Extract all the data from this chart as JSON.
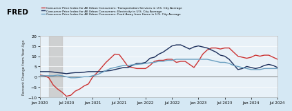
{
  "background_color": "#d5e8f4",
  "plot_background": "#e8f1f8",
  "ylabel": "Percent Change from Year Ago",
  "ylim": [
    -10,
    20
  ],
  "yticks": [
    -10,
    -5,
    0,
    5,
    10,
    15,
    20
  ],
  "shading_x0": 2,
  "shading_x1": 5,
  "legend": [
    {
      "label": "Consumer Price Index for All Urban Consumers: Transportation Services in U.S. City Average",
      "color": "#cc3333",
      "lw": 1.0
    },
    {
      "label": "Consumer Price Index for All Urban Consumers: Electricity in U.S. City Average",
      "color": "#1a2d5a",
      "lw": 1.0
    },
    {
      "label": "Consumer Price Index for All Urban Consumers: Food Away from Home in U.S. City Average",
      "color": "#6a9fc0",
      "lw": 1.0
    }
  ],
  "transportation": [
    0.8,
    0.5,
    -0.5,
    -4.0,
    -6.0,
    -7.5,
    -9.5,
    -9.0,
    -7.0,
    -6.0,
    -4.5,
    -3.5,
    0.0,
    2.0,
    4.5,
    7.0,
    9.0,
    11.0,
    10.8,
    8.0,
    5.0,
    4.5,
    4.0,
    4.0,
    4.0,
    5.5,
    7.5,
    8.0,
    8.0,
    8.5,
    8.5,
    7.0,
    7.5,
    7.5,
    6.0,
    4.5,
    7.5,
    11.0,
    13.0,
    14.0,
    14.0,
    13.5,
    14.0,
    14.0,
    12.0,
    10.0,
    9.5,
    9.0,
    9.5,
    10.5,
    10.0,
    10.5,
    10.5,
    9.5,
    8.5
  ],
  "electricity": [
    2.5,
    2.5,
    2.5,
    2.3,
    2.0,
    1.8,
    1.5,
    1.8,
    2.0,
    2.0,
    2.2,
    2.5,
    2.5,
    2.5,
    2.5,
    2.8,
    3.0,
    3.5,
    4.0,
    4.5,
    4.5,
    5.5,
    6.5,
    6.5,
    7.0,
    9.0,
    9.5,
    11.0,
    12.0,
    13.5,
    15.0,
    15.5,
    15.5,
    14.5,
    13.5,
    14.5,
    15.0,
    14.5,
    14.0,
    13.0,
    12.0,
    10.5,
    10.0,
    8.5,
    6.0,
    3.5,
    4.0,
    5.0,
    4.5,
    4.0,
    4.5,
    5.5,
    6.0,
    5.5,
    4.5
  ],
  "food_away": [
    0.5,
    0.5,
    0.5,
    0.5,
    0.8,
    0.5,
    0.0,
    -0.5,
    -0.5,
    -0.3,
    0.0,
    0.0,
    0.5,
    1.0,
    2.0,
    3.0,
    4.0,
    4.5,
    5.0,
    5.5,
    5.5,
    5.8,
    6.0,
    6.2,
    6.5,
    6.8,
    7.0,
    7.5,
    7.5,
    8.0,
    8.0,
    8.5,
    8.5,
    8.5,
    8.5,
    8.5,
    8.5,
    8.5,
    8.5,
    8.0,
    7.5,
    7.0,
    7.0,
    6.5,
    5.5,
    5.0,
    4.5,
    4.0,
    3.5,
    3.5,
    3.5,
    4.0,
    4.0,
    4.0,
    4.0
  ],
  "xtick_labels": [
    "Jan 2020",
    "Jul 2020",
    "Jan 2021",
    "Jul 2021",
    "Jan 2022",
    "Jul 2022",
    "Jan 2023",
    "Jul 2023",
    "Jan 2024",
    "Jul 2024"
  ],
  "xtick_positions": [
    0,
    6,
    12,
    18,
    24,
    30,
    36,
    42,
    48,
    54
  ],
  "fred_logo": "FRED",
  "fred_color": "#000000"
}
